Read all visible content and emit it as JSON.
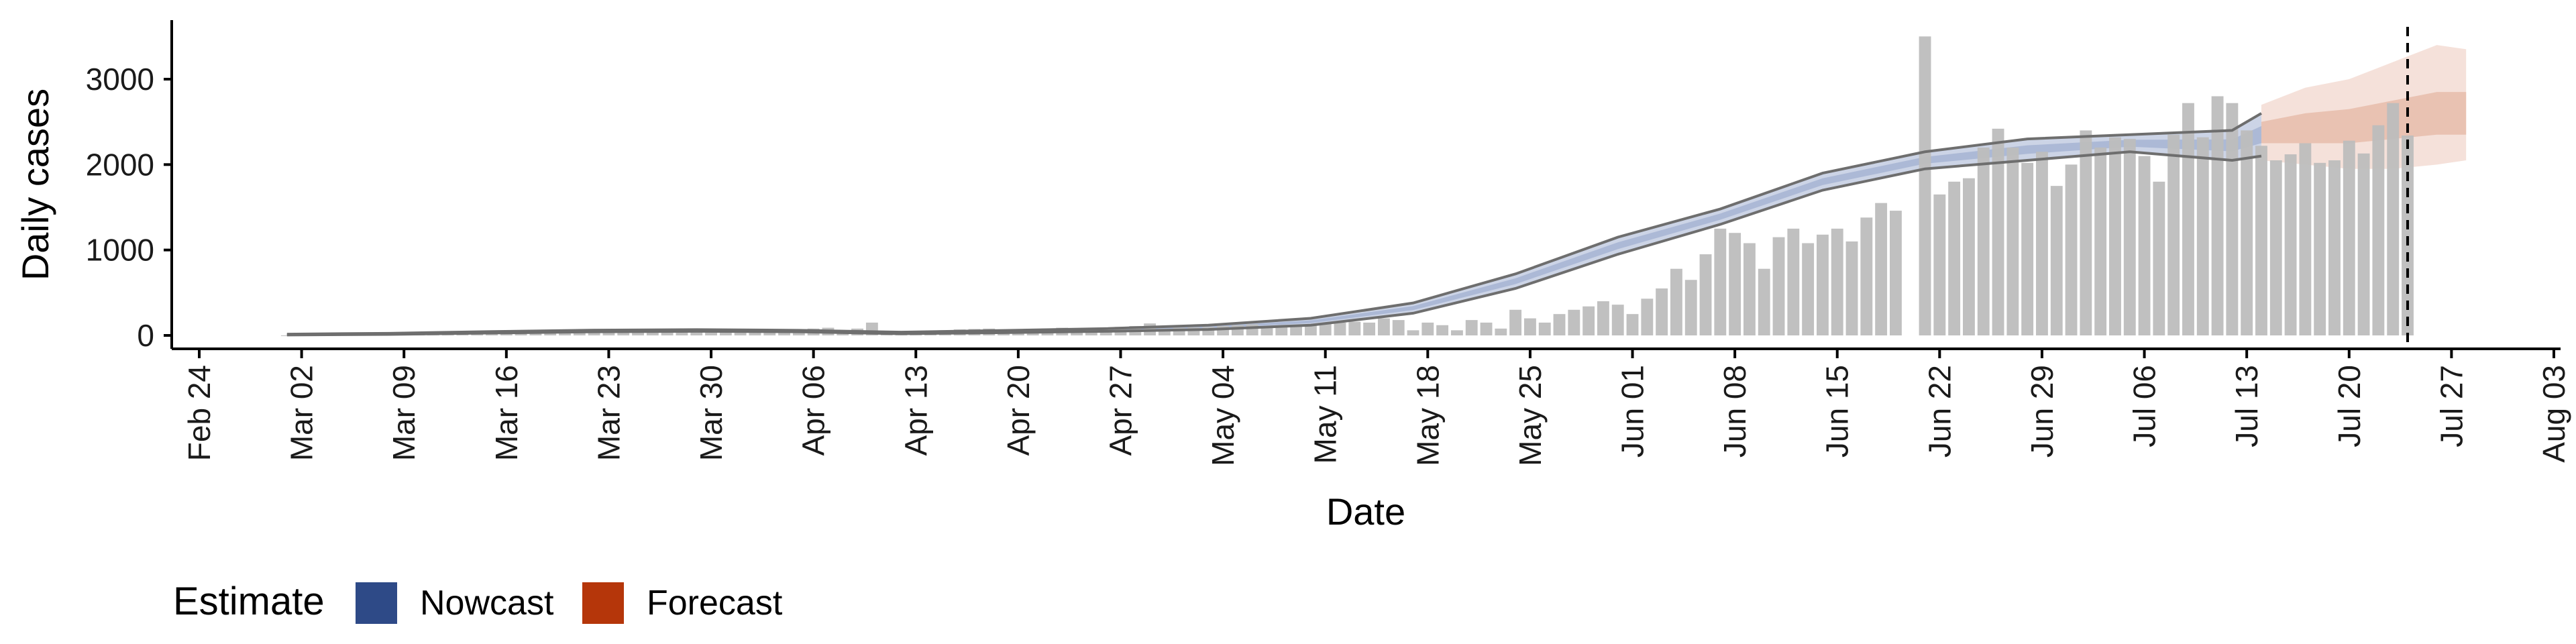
{
  "chart_data": {
    "type": "bar",
    "title": "",
    "xlabel": "Date",
    "ylabel": "Daily cases",
    "x_range": [
      "2020-02-21",
      "2020-08-04"
    ],
    "ylim": [
      -150,
      3650
    ],
    "grid": false,
    "x_ticks": [
      "Feb 24",
      "Mar 02",
      "Mar 09",
      "Mar 16",
      "Mar 23",
      "Mar 30",
      "Apr 06",
      "Apr 13",
      "Apr 20",
      "Apr 27",
      "May 04",
      "May 11",
      "May 18",
      "May 25",
      "Jun 01",
      "Jun 08",
      "Jun 15",
      "Jun 22",
      "Jun 29",
      "Jul 06",
      "Jul 13",
      "Jul 20",
      "Jul 27",
      "Aug 03"
    ],
    "x_tick_dates": [
      "2020-02-24",
      "2020-03-02",
      "2020-03-09",
      "2020-03-16",
      "2020-03-23",
      "2020-03-30",
      "2020-04-06",
      "2020-04-13",
      "2020-04-20",
      "2020-04-27",
      "2020-05-04",
      "2020-05-11",
      "2020-05-18",
      "2020-05-25",
      "2020-06-01",
      "2020-06-08",
      "2020-06-15",
      "2020-06-22",
      "2020-06-29",
      "2020-07-06",
      "2020-07-13",
      "2020-07-20",
      "2020-07-27",
      "2020-08-03"
    ],
    "y_ticks": [
      0,
      1000,
      2000,
      3000
    ],
    "y_tick_labels": [
      "0",
      "1000",
      "2000",
      "3000"
    ],
    "forecast_cutoff_date": "2020-07-24",
    "legend": {
      "title": "Estimate",
      "position": "bottom-left",
      "entries": [
        {
          "label": "Nowcast",
          "color": "#2e4a87"
        },
        {
          "label": "Forecast",
          "color": "#b5360a"
        }
      ]
    },
    "colors": {
      "bar": "#bdbdbd",
      "nowcast_band": "#c6cfe3",
      "nowcast_inner": "#a9b6d4",
      "forecast_band": "#f5e1da",
      "forecast_inner": "#e9c2b2",
      "bound_line": "#6e6e6e",
      "cutoff_line": "#000000"
    },
    "reported_cases": {
      "start_date": "2020-03-01",
      "values": [
        0,
        2,
        3,
        5,
        4,
        6,
        8,
        10,
        12,
        15,
        14,
        18,
        20,
        22,
        25,
        27,
        30,
        28,
        32,
        35,
        38,
        40,
        42,
        45,
        48,
        50,
        47,
        52,
        55,
        56,
        54,
        58,
        60,
        62,
        65,
        70,
        80,
        90,
        60,
        80,
        150,
        50,
        40,
        45,
        55,
        60,
        70,
        75,
        80,
        70,
        65,
        72,
        80,
        90,
        70,
        75,
        85,
        100,
        110,
        140,
        80,
        90,
        95,
        100,
        110,
        120,
        130,
        100,
        110,
        120,
        130,
        140,
        150,
        160,
        150,
        200,
        180,
        60,
        150,
        120,
        60,
        180,
        150,
        80,
        300,
        200,
        150,
        250,
        300,
        340,
        400,
        360,
        250,
        430,
        550,
        780,
        650,
        950,
        1250,
        1200,
        1080,
        780,
        1150,
        1250,
        1080,
        1180,
        1250,
        1100,
        1380,
        1550,
        1460,
        null,
        3500,
        1650,
        1800,
        1840,
        2200,
        2420,
        2200,
        2020,
        2150,
        1750,
        2000,
        2400,
        2200,
        2320,
        2300,
        2100,
        1800,
        2350,
        2720,
        2320,
        2800,
        2720,
        2400,
        2220,
        2050,
        2120,
        2250,
        2020,
        2050,
        2280,
        2130,
        2460,
        2720,
        2340
      ]
    },
    "nowcast_band": {
      "start_date": "2020-03-01",
      "step_days": 7,
      "dates": [
        "2020-03-01",
        "2020-03-08",
        "2020-03-15",
        "2020-03-22",
        "2020-03-29",
        "2020-04-05",
        "2020-04-12",
        "2020-04-19",
        "2020-04-26",
        "2020-05-03",
        "2020-05-10",
        "2020-05-17",
        "2020-05-24",
        "2020-05-31",
        "2020-06-07",
        "2020-06-14",
        "2020-06-21",
        "2020-06-28",
        "2020-07-05",
        "2020-07-12",
        "2020-07-14"
      ],
      "lower": [
        5,
        12,
        28,
        42,
        48,
        42,
        20,
        32,
        48,
        70,
        120,
        260,
        550,
        950,
        1300,
        1700,
        1950,
        2050,
        2150,
        2050,
        2100
      ],
      "upper": [
        15,
        25,
        45,
        62,
        68,
        60,
        38,
        58,
        80,
        120,
        200,
        380,
        720,
        1150,
        1480,
        1900,
        2150,
        2300,
        2350,
        2400,
        2600
      ]
    },
    "forecast_band": {
      "dates": [
        "2020-07-14",
        "2020-07-17",
        "2020-07-20",
        "2020-07-23",
        "2020-07-26",
        "2020-07-28"
      ],
      "lower_90": [
        2050,
        2000,
        1950,
        1950,
        2000,
        2050
      ],
      "upper_90": [
        2700,
        2900,
        3000,
        3200,
        3400,
        3350
      ],
      "lower_50": [
        2250,
        2250,
        2250,
        2300,
        2350,
        2350
      ],
      "upper_50": [
        2500,
        2600,
        2650,
        2750,
        2850,
        2850
      ]
    }
  }
}
